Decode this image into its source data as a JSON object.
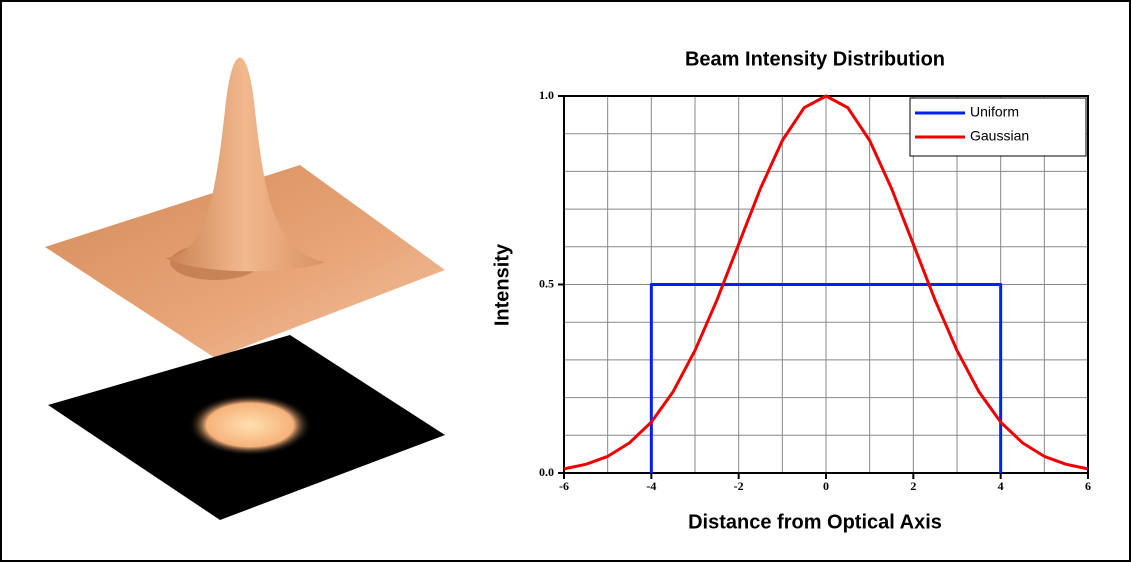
{
  "chart_data": {
    "type": "line",
    "title": "Beam Intensity Distribution",
    "x_label": "Distance from Optical Axis",
    "y_label": "Intensity",
    "xlim": [
      -6,
      6
    ],
    "ylim": [
      0,
      1
    ],
    "xticks": [
      -6,
      -4,
      -2,
      0,
      2,
      4,
      6
    ],
    "yticks": [
      {
        "value": 0,
        "label": "0.0"
      },
      {
        "value": 0.5,
        "label": "0.5"
      },
      {
        "value": 1,
        "label": "1.0"
      }
    ],
    "xgrid": [
      -6,
      -5,
      -4,
      -3,
      -2,
      -1,
      0,
      1,
      2,
      3,
      4,
      5,
      6
    ],
    "ygrid": [
      0,
      0.1,
      0.2,
      0.3,
      0.4,
      0.5,
      0.6,
      0.7,
      0.8,
      0.9,
      1
    ],
    "grid": true,
    "legend": "top-right",
    "series": [
      {
        "name": "Uniform",
        "color": "#0022ee",
        "x": [
          -4,
          -4,
          4,
          4
        ],
        "values": [
          0,
          0.5,
          0.5,
          0
        ]
      },
      {
        "name": "Gaussian",
        "color": "#ee0000",
        "x": [
          -6,
          -5.5,
          -5,
          -4.5,
          -4,
          -3.5,
          -3,
          -2.5,
          -2,
          -1.5,
          -1,
          -0.5,
          0,
          0.5,
          1,
          1.5,
          2,
          2.5,
          3,
          3.5,
          4,
          4.5,
          5,
          5.5,
          6
        ],
        "values": [
          0.011,
          0.023,
          0.044,
          0.08,
          0.135,
          0.216,
          0.325,
          0.458,
          0.607,
          0.755,
          0.882,
          0.969,
          1,
          0.969,
          0.882,
          0.755,
          0.607,
          0.458,
          0.325,
          0.216,
          0.135,
          0.08,
          0.044,
          0.023,
          0.011
        ]
      }
    ]
  }
}
